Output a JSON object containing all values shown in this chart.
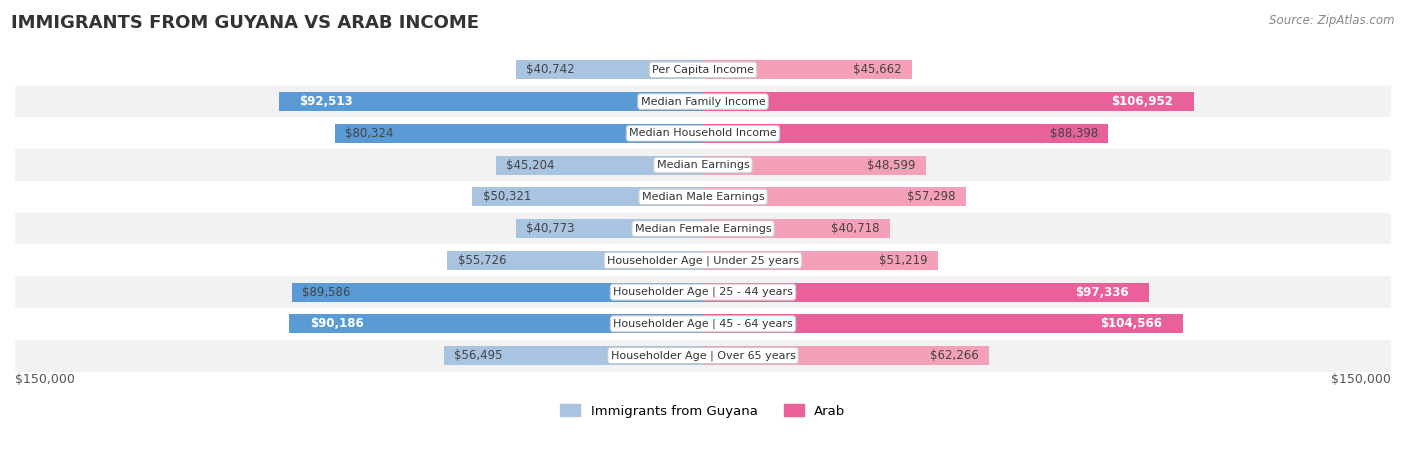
{
  "title": "IMMIGRANTS FROM GUYANA VS ARAB INCOME",
  "source": "Source: ZipAtlas.com",
  "categories": [
    "Per Capita Income",
    "Median Family Income",
    "Median Household Income",
    "Median Earnings",
    "Median Male Earnings",
    "Median Female Earnings",
    "Householder Age | Under 25 years",
    "Householder Age | 25 - 44 years",
    "Householder Age | 45 - 64 years",
    "Householder Age | Over 65 years"
  ],
  "guyana_values": [
    40742,
    92513,
    80324,
    45204,
    50321,
    40773,
    55726,
    89586,
    90186,
    56495
  ],
  "arab_values": [
    45662,
    106952,
    88398,
    48599,
    57298,
    40718,
    51219,
    97336,
    104566,
    62266
  ],
  "guyana_labels": [
    "$40,742",
    "$92,513",
    "$80,324",
    "$45,204",
    "$50,321",
    "$40,773",
    "$55,726",
    "$89,586",
    "$90,186",
    "$56,495"
  ],
  "arab_labels": [
    "$45,662",
    "$106,952",
    "$88,398",
    "$48,599",
    "$57,298",
    "$40,718",
    "$51,219",
    "$97,336",
    "$104,566",
    "$62,266"
  ],
  "guyana_color_light": "#a8c4e0",
  "guyana_color_dark": "#5b9bd5",
  "arab_color_light": "#f4a0b8",
  "arab_color_dark": "#e9609a",
  "axis_max": 150000,
  "legend_guyana": "Immigrants from Guyana",
  "legend_arab": "Arab",
  "background_color": "#ffffff",
  "row_bg_even": "#f2f2f2",
  "row_bg_odd": "#ffffff",
  "xlabel_left": "$150,000",
  "xlabel_right": "$150,000",
  "guyana_dark_rows": [
    1,
    8
  ],
  "guyana_medium_rows": [
    2,
    7
  ],
  "arab_dark_rows": [
    1,
    7,
    8
  ],
  "arab_medium_rows": [
    2
  ]
}
